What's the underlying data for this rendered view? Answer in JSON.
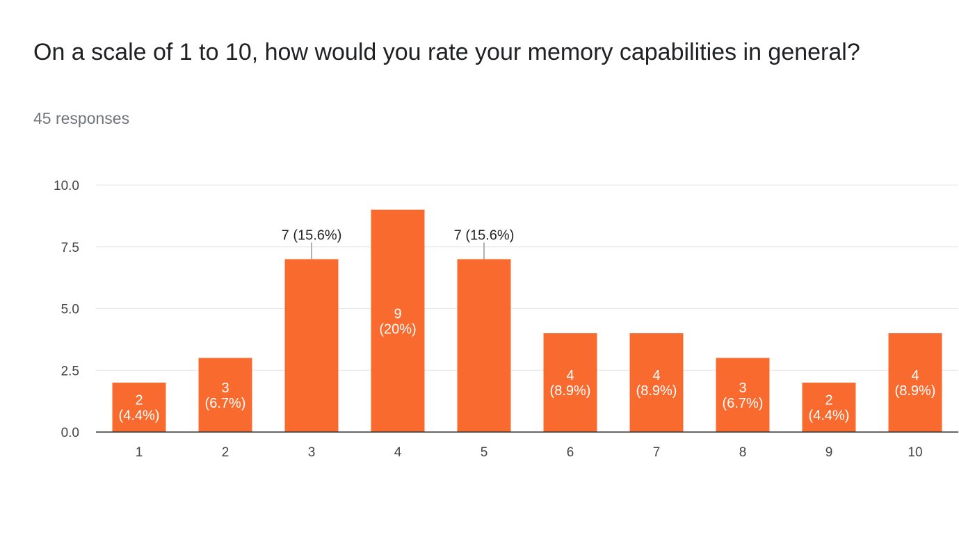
{
  "question": {
    "title": "On a scale of 1 to 10, how would you rate your memory capabilities in general?",
    "responses": "45 responses"
  },
  "colors": {
    "bar": "#f86a2e",
    "gridline": "#e6e6e6",
    "axis": "#333333",
    "tick_text": "#444444",
    "label_inside": "#ffffff",
    "label_outside": "#222222",
    "leader_line": "#999999"
  },
  "chart_data": {
    "type": "bar",
    "categories": [
      "1",
      "2",
      "3",
      "4",
      "5",
      "6",
      "7",
      "8",
      "9",
      "10"
    ],
    "values": [
      2,
      3,
      7,
      9,
      7,
      4,
      4,
      3,
      2,
      4
    ],
    "labels": [
      [
        "2",
        "(4.4%)"
      ],
      [
        "3",
        "(6.7%)"
      ],
      [
        "7 (15.6%)"
      ],
      [
        "9",
        "(20%)"
      ],
      [
        "7 (15.6%)"
      ],
      [
        "4",
        "(8.9%)"
      ],
      [
        "4",
        "(8.9%)"
      ],
      [
        "3",
        "(6.7%)"
      ],
      [
        "2",
        "(4.4%)"
      ],
      [
        "4",
        "(8.9%)"
      ]
    ],
    "label_positions": [
      "inside",
      "inside",
      "outside",
      "inside",
      "outside",
      "inside",
      "inside",
      "inside",
      "inside",
      "inside"
    ],
    "yticks": [
      "0.0",
      "2.5",
      "5.0",
      "7.5",
      "10.0"
    ],
    "ylim": [
      0,
      10
    ],
    "grid": true,
    "legend": "none"
  }
}
